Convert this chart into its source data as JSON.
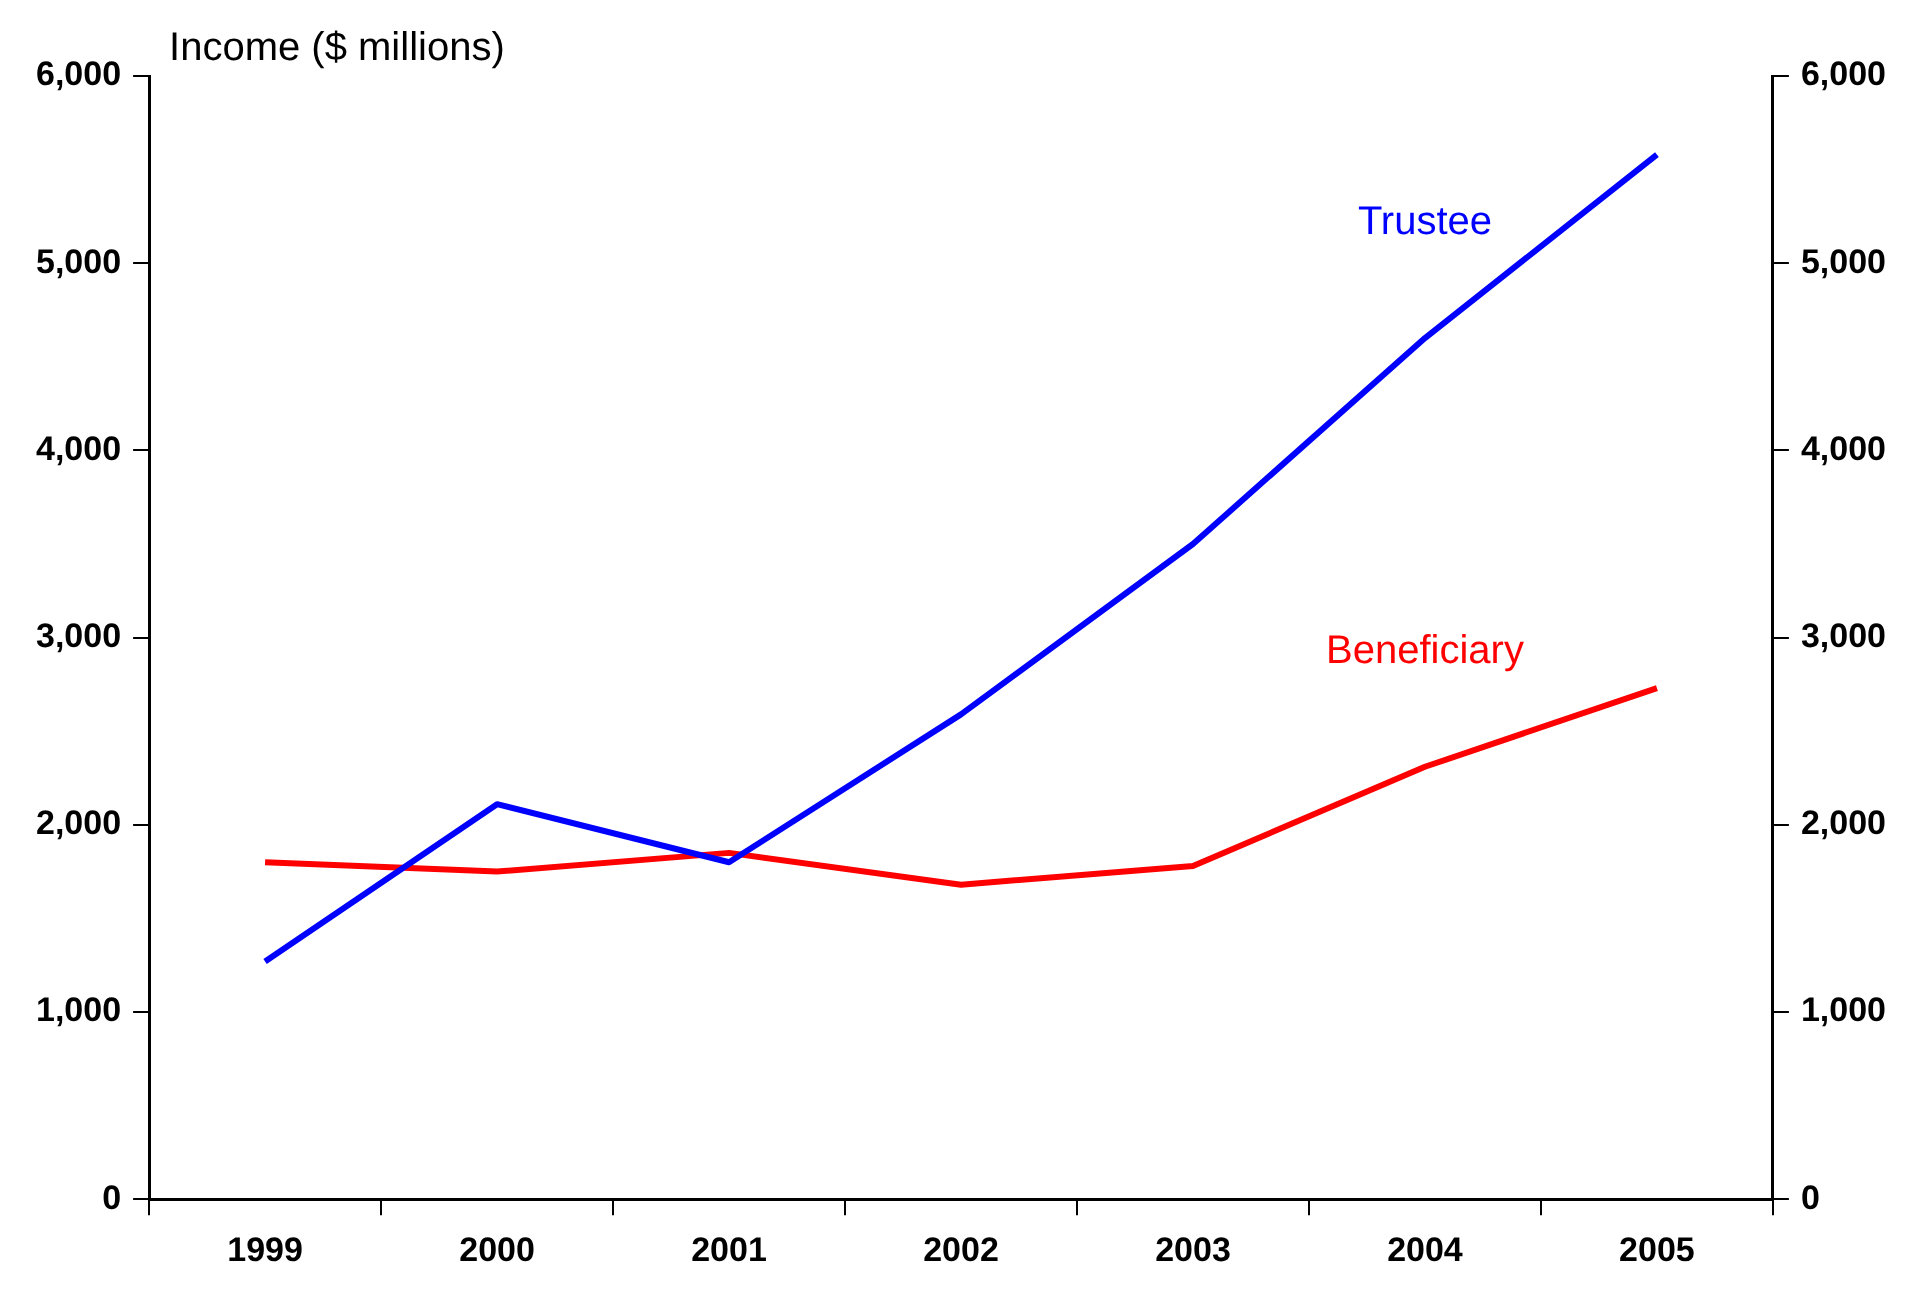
{
  "chart_data": {
    "type": "line",
    "ylabel": "Income ($ millions)",
    "categories": [
      "1999",
      "2000",
      "2001",
      "2002",
      "2003",
      "2004",
      "2005"
    ],
    "series": [
      {
        "name": "Trustee",
        "color": "#0000ff",
        "values": [
          1270,
          2110,
          1800,
          2590,
          3500,
          4600,
          5580
        ]
      },
      {
        "name": "Beneficiary",
        "color": "#ff0000",
        "values": [
          1800,
          1750,
          1850,
          1680,
          1780,
          2310,
          2730
        ]
      }
    ],
    "ylim": [
      0,
      6000
    ],
    "yticks": [
      0,
      {
        "value": 1000,
        "label": "1,000"
      },
      {
        "value": 2000,
        "label": "2,000"
      },
      {
        "value": 3000,
        "label": "3,000"
      },
      {
        "value": 4000,
        "label": "4,000"
      },
      {
        "value": 5000,
        "label": "5,000"
      },
      {
        "value": 6000,
        "label": "6,000"
      }
    ],
    "y2lim": [
      0,
      6000
    ],
    "y2ticks": [
      0,
      {
        "value": 1000,
        "label": "1,000"
      },
      {
        "value": 2000,
        "label": "2,000"
      },
      {
        "value": 3000,
        "label": "3,000"
      },
      {
        "value": 4000,
        "label": "4,000"
      },
      {
        "value": 5000,
        "label": "5,000"
      },
      {
        "value": 6000,
        "label": "6,000"
      }
    ],
    "grid": false,
    "legend": false,
    "marker": "none",
    "line_style": "solid"
  }
}
